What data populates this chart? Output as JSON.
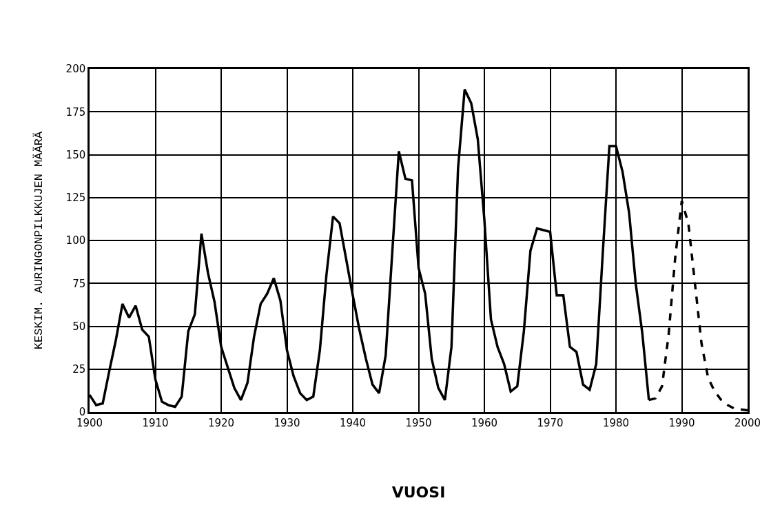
{
  "chart_data": {
    "type": "line",
    "xlabel": "VUOSI",
    "ylabel": "KESKIM. AURINGONPILKKUJEN MÄÄRÄ",
    "series": [
      {
        "color": "#000000",
        "line_style": "solid",
        "x": [
          1900,
          1901,
          1902,
          1903,
          1904,
          1905,
          1906,
          1907,
          1908,
          1909,
          1910,
          1911,
          1912,
          1913,
          1914,
          1915,
          1916,
          1917,
          1918,
          1919,
          1920,
          1921,
          1922,
          1923,
          1924,
          1925,
          1926,
          1927,
          1928,
          1929,
          1930,
          1931,
          1932,
          1933,
          1934,
          1935,
          1936,
          1937,
          1938,
          1939,
          1940,
          1941,
          1942,
          1943,
          1944,
          1945,
          1946,
          1947,
          1948,
          1949,
          1950,
          1951,
          1952,
          1953,
          1954,
          1955,
          1956,
          1957,
          1958,
          1959,
          1960,
          1961,
          1962,
          1963,
          1964,
          1965,
          1966,
          1967,
          1968,
          1969,
          1970,
          1971,
          1972,
          1973,
          1974,
          1975,
          1976,
          1977,
          1978,
          1979,
          1980,
          1981,
          1982,
          1983,
          1984,
          1985
        ],
        "values": [
          10,
          4,
          5,
          24,
          42,
          63,
          55,
          62,
          48,
          44,
          19,
          6,
          4,
          3,
          9,
          47,
          57,
          104,
          81,
          64,
          38,
          26,
          14,
          7,
          17,
          44,
          63,
          69,
          78,
          65,
          36,
          21,
          11,
          7,
          9,
          36,
          80,
          114,
          110,
          89,
          68,
          48,
          31,
          16,
          11,
          33,
          93,
          152,
          136,
          135,
          84,
          69,
          31,
          14,
          7,
          38,
          142,
          188,
          180,
          159,
          112,
          54,
          38,
          28,
          12,
          15,
          47,
          94,
          107,
          106,
          105,
          68,
          68,
          38,
          35,
          16,
          13,
          28,
          93,
          155,
          155,
          140,
          116,
          75,
          46,
          7
        ]
      },
      {
        "color": "#000000",
        "line_style": "dashed",
        "x": [
          1985,
          1986,
          1987,
          1988,
          1989,
          1990,
          1991,
          1992,
          1993,
          1994,
          1995,
          1996,
          1997,
          1998,
          1999,
          2000
        ],
        "values": [
          7,
          8,
          15,
          45,
          90,
          123,
          110,
          75,
          40,
          20,
          12,
          7,
          4,
          2,
          1.5,
          1
        ]
      }
    ],
    "xlim": [
      1900,
      2000
    ],
    "xticks": [
      1900,
      1910,
      1920,
      1930,
      1940,
      1950,
      1960,
      1970,
      1980,
      1990,
      2000
    ],
    "ylim": [
      0,
      200
    ],
    "yticks": [
      0,
      25,
      50,
      75,
      100,
      125,
      150,
      175,
      200
    ],
    "grid": true,
    "marker": "none"
  }
}
